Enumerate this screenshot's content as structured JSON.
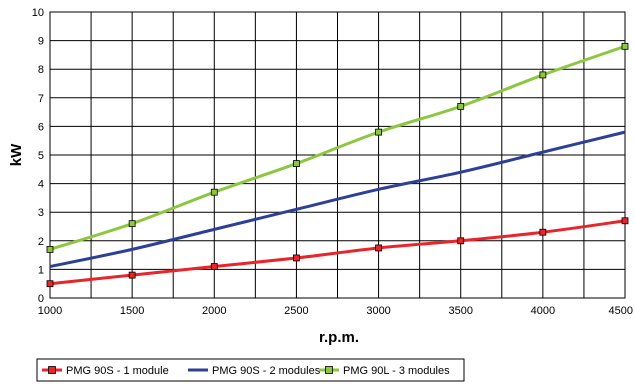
{
  "chart_data": {
    "type": "line",
    "title": "",
    "xlabel": "r.p.m.",
    "ylabel": "kW",
    "xlim": [
      1000,
      4500
    ],
    "ylim": [
      0,
      10
    ],
    "x_ticks": [
      1000,
      1500,
      2000,
      2500,
      3000,
      3500,
      4000,
      4500
    ],
    "x_minor_ticks": [
      1250,
      1750,
      2250,
      2750,
      3250,
      3750,
      4250
    ],
    "y_ticks": [
      0,
      1,
      2,
      3,
      4,
      5,
      6,
      7,
      8,
      9,
      10
    ],
    "grid": true,
    "legend_position": "bottom",
    "series": [
      {
        "name": "PMG 90S - 1 module",
        "color": "#e8252b",
        "marker": "square",
        "x": [
          1000,
          1500,
          2000,
          2500,
          3000,
          3500,
          4000,
          4500
        ],
        "y": [
          0.5,
          0.8,
          1.1,
          1.4,
          1.75,
          2.0,
          2.3,
          2.7
        ]
      },
      {
        "name": "PMG 90S - 2 modules",
        "color": "#2e4096",
        "marker": "none",
        "x": [
          1000,
          1500,
          2000,
          2500,
          3000,
          3500,
          4000,
          4500
        ],
        "y": [
          1.1,
          1.7,
          2.4,
          3.1,
          3.8,
          4.4,
          5.1,
          5.8
        ]
      },
      {
        "name": "PMG 90L - 3 modules",
        "color": "#8dc63f",
        "marker": "square",
        "x": [
          1000,
          1500,
          2000,
          2500,
          3000,
          3500,
          4000,
          4500
        ],
        "y": [
          1.7,
          2.6,
          3.7,
          4.7,
          5.8,
          6.7,
          7.8,
          8.8
        ]
      }
    ]
  }
}
